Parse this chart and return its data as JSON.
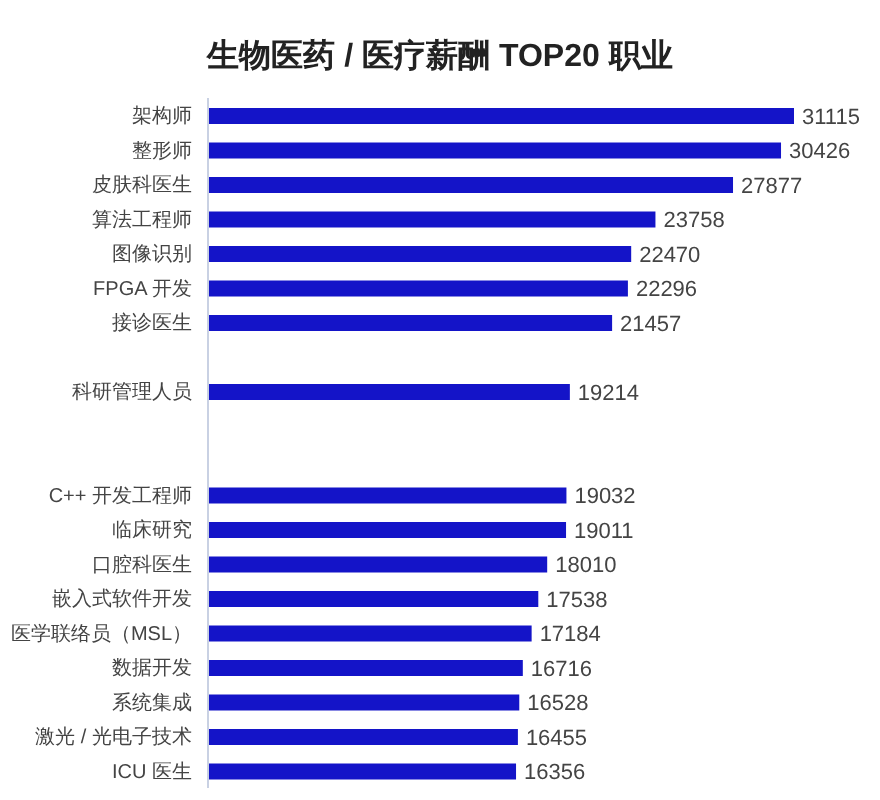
{
  "chart_data": {
    "type": "bar",
    "orientation": "horizontal",
    "title": "生物医药 / 医疗薪酬 TOP20 职业",
    "categories": [
      "架构师",
      "整形师",
      "皮肤科医生",
      "算法工程师",
      "图像识别",
      "FPGA 开发",
      "接诊医生",
      null,
      "科研管理人员",
      null,
      null,
      "C++ 开发工程师",
      "临床研究",
      "口腔科医生",
      "嵌入式软件开发",
      "医学联络员（MSL）",
      "数据开发",
      "系统集成",
      "激光 / 光电子技术",
      "ICU 医生"
    ],
    "values": [
      31115,
      30426,
      27877,
      23758,
      22470,
      22296,
      21457,
      null,
      19214,
      null,
      null,
      19032,
      19011,
      18010,
      17538,
      17184,
      16716,
      16528,
      16455,
      16356
    ],
    "color": "#1414c8",
    "data_labels": true
  }
}
